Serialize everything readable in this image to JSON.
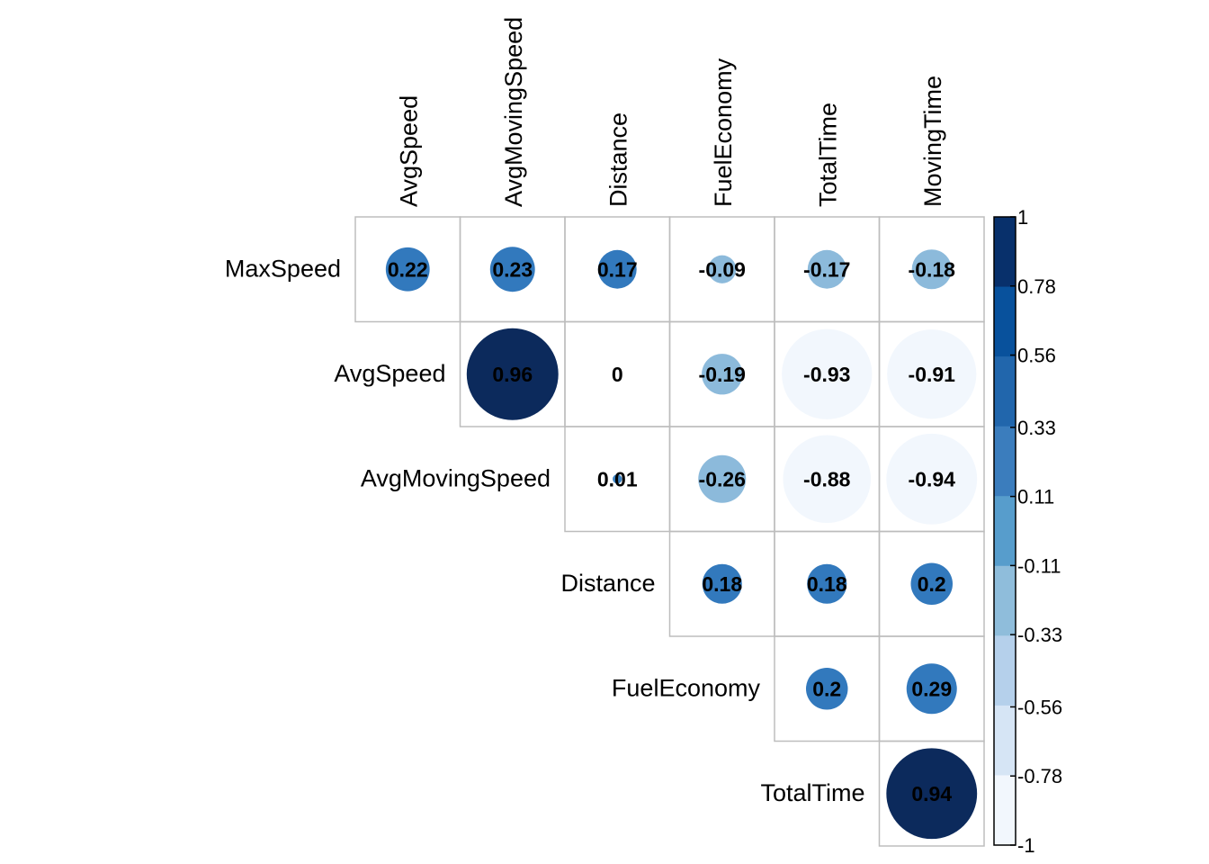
{
  "chart_data": {
    "type": "heatmap",
    "subtype": "correlation-matrix-upper-triangle-circles",
    "col_labels": [
      "AvgSpeed",
      "AvgMovingSpeed",
      "Distance",
      "FuelEconomy",
      "TotalTime",
      "MovingTime"
    ],
    "row_labels": [
      "MaxSpeed",
      "AvgSpeed",
      "AvgMovingSpeed",
      "Distance",
      "FuelEconomy",
      "TotalTime"
    ],
    "cells": [
      {
        "row": 0,
        "col": 0,
        "value": 0.22,
        "label": "0.22"
      },
      {
        "row": 0,
        "col": 1,
        "value": 0.23,
        "label": "0.23"
      },
      {
        "row": 0,
        "col": 2,
        "value": 0.17,
        "label": "0.17"
      },
      {
        "row": 0,
        "col": 3,
        "value": -0.09,
        "label": "-0.09"
      },
      {
        "row": 0,
        "col": 4,
        "value": -0.17,
        "label": "-0.17"
      },
      {
        "row": 0,
        "col": 5,
        "value": -0.18,
        "label": "-0.18"
      },
      {
        "row": 1,
        "col": 1,
        "value": 0.96,
        "label": "0.96"
      },
      {
        "row": 1,
        "col": 2,
        "value": 0,
        "label": "0"
      },
      {
        "row": 1,
        "col": 3,
        "value": -0.19,
        "label": "-0.19"
      },
      {
        "row": 1,
        "col": 4,
        "value": -0.93,
        "label": "-0.93"
      },
      {
        "row": 1,
        "col": 5,
        "value": -0.91,
        "label": "-0.91"
      },
      {
        "row": 2,
        "col": 2,
        "value": 0.01,
        "label": "0.01"
      },
      {
        "row": 2,
        "col": 3,
        "value": -0.26,
        "label": "-0.26"
      },
      {
        "row": 2,
        "col": 4,
        "value": -0.88,
        "label": "-0.88"
      },
      {
        "row": 2,
        "col": 5,
        "value": -0.94,
        "label": "-0.94"
      },
      {
        "row": 3,
        "col": 3,
        "value": 0.18,
        "label": "0.18"
      },
      {
        "row": 3,
        "col": 4,
        "value": 0.18,
        "label": "0.18"
      },
      {
        "row": 3,
        "col": 5,
        "value": 0.2,
        "label": "0.2"
      },
      {
        "row": 4,
        "col": 4,
        "value": 0.2,
        "label": "0.2"
      },
      {
        "row": 4,
        "col": 5,
        "value": 0.29,
        "label": "0.29"
      },
      {
        "row": 5,
        "col": 5,
        "value": 0.94,
        "label": "0.94"
      }
    ],
    "colorbar": {
      "range": [
        -1,
        1
      ],
      "ticks": [
        1,
        0.78,
        0.56,
        0.33,
        0.11,
        -0.11,
        -0.33,
        -0.56,
        -0.78,
        -1
      ],
      "tick_labels": [
        "1",
        "0.78",
        "0.56",
        "0.33",
        "0.11",
        "-0.11",
        "-0.33",
        "-0.56",
        "-0.78",
        "-1"
      ],
      "colors_top_to_bottom": [
        "#08306B",
        "#08519C",
        "#2166AC",
        "#3B7DBD",
        "#579DCC",
        "#8FBDDB",
        "#B5D0EB",
        "#D6E5F5",
        "#F2F7FD"
      ]
    },
    "circle_palette": {
      "very_strong_positive": "#0C2A5C",
      "moderate_positive": "#3279BD",
      "weak_positive": "#3C83C3",
      "weak_negative": "#8CBADB",
      "very_strong_negative": "#F2F7FD"
    },
    "grid_color": "#BDBDBD",
    "legend_placement": "right"
  }
}
